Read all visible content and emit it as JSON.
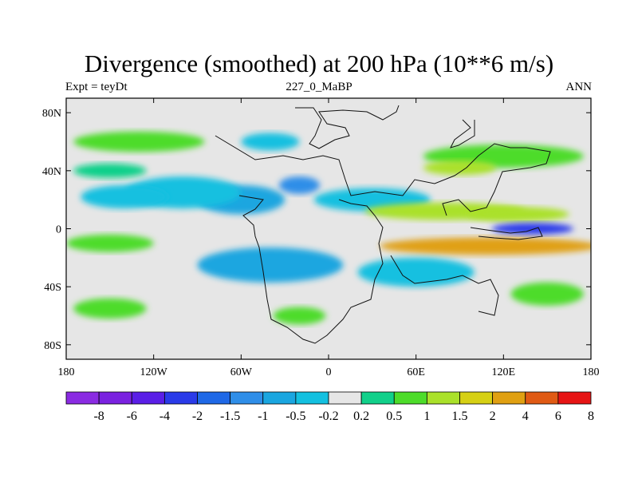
{
  "chart_data": {
    "type": "heatmap",
    "title": "Divergence (smoothed) at 200 hPa (10**6 m/s)",
    "left_string": "Expt = teyDt",
    "center_string": "227_0_MaBP",
    "right_string": "ANN",
    "xlim": [
      -180,
      180
    ],
    "ylim": [
      -90,
      90
    ],
    "x_ticks": [
      {
        "value": -180,
        "label": "180"
      },
      {
        "value": -120,
        "label": "120W"
      },
      {
        "value": -60,
        "label": "60W"
      },
      {
        "value": 0,
        "label": "0"
      },
      {
        "value": 60,
        "label": "60E"
      },
      {
        "value": 120,
        "label": "120E"
      },
      {
        "value": 180,
        "label": "180"
      }
    ],
    "y_ticks": [
      {
        "value": 80,
        "label": "80N"
      },
      {
        "value": 40,
        "label": "40N"
      },
      {
        "value": 0,
        "label": "0"
      },
      {
        "value": -40,
        "label": "40S"
      },
      {
        "value": -80,
        "label": "80S"
      }
    ],
    "levels": [
      "-8",
      "-6",
      "-4",
      "-2",
      "-1.5",
      "-1",
      "-0.5",
      "-0.2",
      "0.2",
      "0.5",
      "1",
      "1.5",
      "2",
      "4",
      "6",
      "8"
    ],
    "colors": [
      "#8a2be2",
      "#7a22e0",
      "#5a1ee6",
      "#2a3ae8",
      "#1f68e6",
      "#2f8ee8",
      "#1aa6e0",
      "#13c0e0",
      "#e6e6e6",
      "#11d08a",
      "#4ddc2a",
      "#aae12a",
      "#d6d014",
      "#e0a012",
      "#e05a14",
      "#e61414"
    ],
    "bg_color": "#e6e6e6",
    "features": [
      {
        "lon": -60,
        "lat": 20,
        "value": -1,
        "rx": 30,
        "ry": 10
      },
      {
        "lon": -20,
        "lat": 30,
        "value": -1.5,
        "rx": 14,
        "ry": 6
      },
      {
        "lon": -100,
        "lat": 25,
        "value": -0.5,
        "rx": 40,
        "ry": 11
      },
      {
        "lon": -140,
        "lat": 22,
        "value": -0.3,
        "rx": 30,
        "ry": 8
      },
      {
        "lon": 30,
        "lat": 20,
        "value": -0.3,
        "rx": 40,
        "ry": 8
      },
      {
        "lon": -130,
        "lat": 60,
        "value": 0.6,
        "rx": 45,
        "ry": 7
      },
      {
        "lon": -150,
        "lat": 40,
        "value": 0.4,
        "rx": 25,
        "ry": 5
      },
      {
        "lon": 120,
        "lat": 50,
        "value": 0.7,
        "rx": 55,
        "ry": 8
      },
      {
        "lon": 90,
        "lat": 42,
        "value": 1.2,
        "rx": 25,
        "ry": 5
      },
      {
        "lon": 80,
        "lat": 12,
        "value": 1,
        "rx": 55,
        "ry": 6
      },
      {
        "lon": 130,
        "lat": 10,
        "value": 1.3,
        "rx": 35,
        "ry": 5
      },
      {
        "lon": 110,
        "lat": -12,
        "value": 2.5,
        "rx": 75,
        "ry": 6
      },
      {
        "lon": 140,
        "lat": 0,
        "value": -2.5,
        "rx": 28,
        "ry": 4
      },
      {
        "lon": -40,
        "lat": -25,
        "value": -1,
        "rx": 50,
        "ry": 12
      },
      {
        "lon": 60,
        "lat": -30,
        "value": -0.5,
        "rx": 40,
        "ry": 10
      },
      {
        "lon": -150,
        "lat": -10,
        "value": 0.5,
        "rx": 30,
        "ry": 6
      },
      {
        "lon": -150,
        "lat": -55,
        "value": 0.6,
        "rx": 25,
        "ry": 7
      },
      {
        "lon": 150,
        "lat": -45,
        "value": 0.5,
        "rx": 25,
        "ry": 8
      },
      {
        "lon": -20,
        "lat": -60,
        "value": 0.5,
        "rx": 18,
        "ry": 6
      },
      {
        "lon": -40,
        "lat": 60,
        "value": -0.4,
        "rx": 20,
        "ry": 6
      }
    ]
  }
}
